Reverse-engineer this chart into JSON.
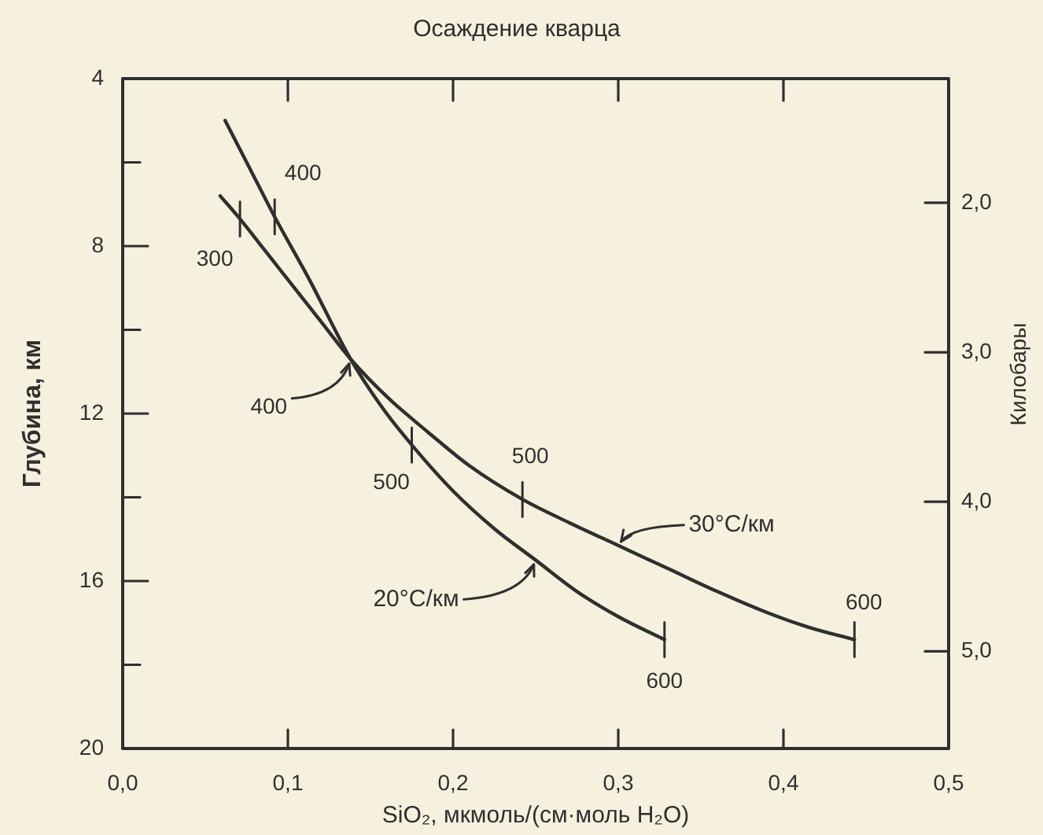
{
  "chart_data": {
    "type": "line",
    "title": "Осаждение кварца",
    "xlabel": "SiO₂, мкмоль/(см·моль H₂O)",
    "ylabel": "Глубина, км",
    "y2label": "Килобары",
    "xlim": [
      0,
      0.5
    ],
    "xticks": [
      {
        "value": 0,
        "label": "0,0"
      },
      {
        "value": 0.1,
        "label": "0,1"
      },
      {
        "value": 0.2,
        "label": "0,2"
      },
      {
        "value": 0.3,
        "label": "0,3"
      },
      {
        "value": 0.4,
        "label": "0,4"
      },
      {
        "value": 0.5,
        "label": "0,5"
      }
    ],
    "ylim": [
      20,
      4
    ],
    "yticks": [
      4,
      {
        "value": 6,
        "label": null
      },
      8,
      {
        "value": 10,
        "label": null
      },
      12,
      {
        "value": 14,
        "label": null
      },
      16,
      {
        "value": 18,
        "label": null
      },
      20
    ],
    "y2lim": [
      5.65,
      1.17
    ],
    "y2ticks": [
      {
        "value": 2,
        "label": "2,0"
      },
      {
        "value": 3,
        "label": "3,0"
      },
      {
        "value": 4,
        "label": "4,0"
      },
      {
        "value": 5,
        "label": "5,0"
      }
    ],
    "marker": "none",
    "series": [
      {
        "name": "20°C/км",
        "color": "#2f2f2f",
        "x": [
          0.062,
          0.077,
          0.092,
          0.113,
          0.138,
          0.157,
          0.175,
          0.2,
          0.225,
          0.25,
          0.275,
          0.3,
          0.328
        ],
        "values": [
          5.0,
          6.15,
          7.3,
          8.8,
          10.7,
          11.85,
          12.75,
          13.85,
          14.75,
          15.5,
          16.25,
          16.85,
          17.4
        ]
      },
      {
        "name": "30°C/км",
        "color": "#2f2f2f",
        "x": [
          0.059,
          0.071,
          0.085,
          0.1,
          0.12,
          0.138,
          0.16,
          0.185,
          0.21,
          0.242,
          0.27,
          0.3,
          0.33,
          0.36,
          0.39,
          0.415,
          0.443
        ],
        "values": [
          6.8,
          7.35,
          8.05,
          8.8,
          9.8,
          10.7,
          11.6,
          12.45,
          13.25,
          14.05,
          14.6,
          15.15,
          15.7,
          16.25,
          16.75,
          17.1,
          17.4
        ]
      }
    ],
    "annotations": [
      {
        "text": "400",
        "x": 0.092,
        "y": 7.3
      },
      {
        "text": "300",
        "x": 0.071,
        "y": 7.35
      },
      {
        "text": "400",
        "x": 0.138,
        "y": 10.7
      },
      {
        "text": "500",
        "x": 0.175,
        "y": 12.75
      },
      {
        "text": "500",
        "x": 0.242,
        "y": 14.05
      },
      {
        "text": "600",
        "x": 0.328,
        "y": 17.4
      },
      {
        "text": "600",
        "x": 0.443,
        "y": 17.4
      }
    ]
  }
}
